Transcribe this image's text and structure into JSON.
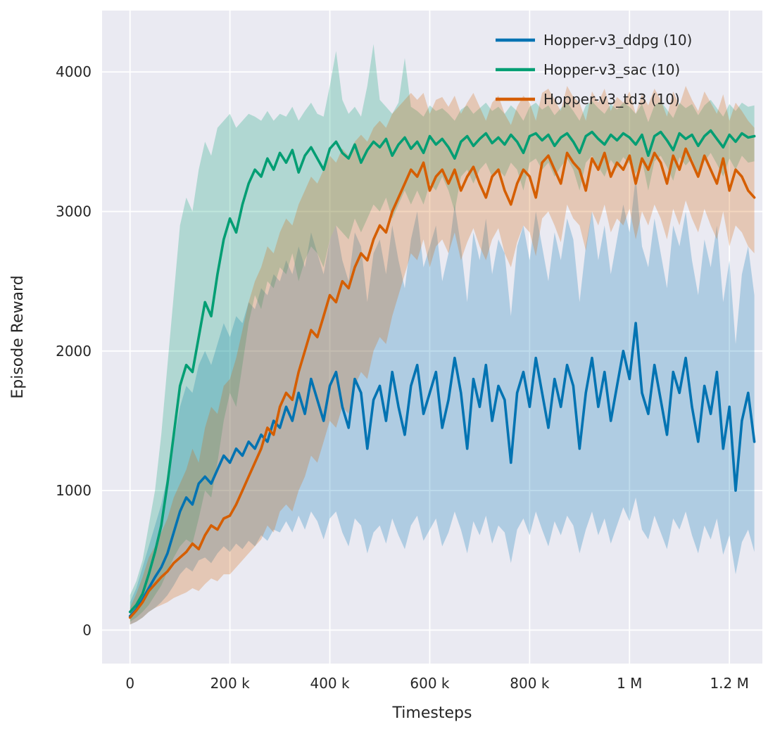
{
  "chart_data": {
    "type": "line",
    "title": "",
    "xlabel": "Timesteps",
    "ylabel": "Episode Reward",
    "axes": {
      "background": "#eaeaf2",
      "grid_color": "#ffffff",
      "text_color": "#262626",
      "grid": "on",
      "xlim": [
        -56000,
        1266000
      ],
      "ylim": [
        -240,
        4440
      ],
      "xticks": [
        {
          "value": 0,
          "label": "0"
        },
        {
          "value": 200000,
          "label": "200 k"
        },
        {
          "value": 400000,
          "label": "400 k"
        },
        {
          "value": 600000,
          "label": "600 k"
        },
        {
          "value": 800000,
          "label": "800 k"
        },
        {
          "value": 1000000,
          "label": "1 M"
        },
        {
          "value": 1200000,
          "label": "1.2 M"
        }
      ],
      "yticks": [
        {
          "value": 0,
          "label": "0"
        },
        {
          "value": 1000,
          "label": "1000"
        },
        {
          "value": 2000,
          "label": "2000"
        },
        {
          "value": 3000,
          "label": "3000"
        },
        {
          "value": 4000,
          "label": "4000"
        }
      ]
    },
    "legend": {
      "location": "upper right",
      "frame": false
    },
    "band_alpha": 0.25,
    "x": {
      "start": 0,
      "step": 12500,
      "count": 101,
      "unit": "timesteps"
    },
    "series": [
      {
        "id": "ddpg",
        "name": "Hopper-v3_ddpg (10)",
        "color": "#0173b2",
        "mean": [
          100,
          150,
          220,
          300,
          380,
          450,
          550,
          700,
          850,
          950,
          900,
          1050,
          1100,
          1050,
          1150,
          1250,
          1200,
          1300,
          1250,
          1350,
          1300,
          1400,
          1350,
          1500,
          1450,
          1600,
          1500,
          1700,
          1550,
          1800,
          1650,
          1500,
          1750,
          1850,
          1600,
          1450,
          1800,
          1700,
          1300,
          1650,
          1750,
          1500,
          1850,
          1600,
          1400,
          1750,
          1900,
          1550,
          1700,
          1850,
          1450,
          1650,
          1950,
          1700,
          1300,
          1800,
          1600,
          1900,
          1500,
          1750,
          1650,
          1200,
          1700,
          1850,
          1600,
          1950,
          1700,
          1450,
          1800,
          1600,
          1900,
          1750,
          1300,
          1700,
          1950,
          1600,
          1850,
          1500,
          1750,
          2000,
          1800,
          2200,
          1700,
          1550,
          1900,
          1650,
          1400,
          1850,
          1700,
          1950,
          1600,
          1350,
          1750,
          1550,
          1850,
          1300,
          1600,
          1000,
          1500,
          1700,
          1350
        ],
        "band_low": [
          40,
          60,
          90,
          130,
          160,
          200,
          250,
          320,
          400,
          450,
          420,
          500,
          520,
          480,
          550,
          600,
          560,
          620,
          580,
          640,
          600,
          680,
          640,
          720,
          700,
          780,
          700,
          820,
          720,
          850,
          780,
          650,
          800,
          850,
          700,
          600,
          800,
          750,
          550,
          700,
          750,
          620,
          800,
          680,
          580,
          750,
          820,
          640,
          720,
          800,
          600,
          700,
          850,
          720,
          550,
          780,
          680,
          820,
          620,
          750,
          700,
          480,
          720,
          800,
          680,
          850,
          720,
          600,
          780,
          680,
          820,
          750,
          550,
          720,
          850,
          680,
          800,
          620,
          750,
          880,
          780,
          950,
          720,
          650,
          820,
          700,
          580,
          800,
          720,
          850,
          680,
          550,
          750,
          650,
          800,
          540,
          680,
          400,
          630,
          720,
          560
        ],
        "band_high": [
          200,
          300,
          450,
          600,
          750,
          900,
          1100,
          1350,
          1600,
          1750,
          1700,
          1900,
          2000,
          1900,
          2050,
          2200,
          2100,
          2250,
          2200,
          2350,
          2300,
          2450,
          2400,
          2550,
          2500,
          2650,
          2550,
          2750,
          2600,
          2850,
          2700,
          2550,
          2800,
          2900,
          2650,
          2500,
          2850,
          2750,
          2350,
          2700,
          2800,
          2550,
          2900,
          2650,
          2450,
          2800,
          3000,
          2600,
          2750,
          2900,
          2500,
          2700,
          3050,
          2750,
          2350,
          2850,
          2650,
          2950,
          2550,
          2800,
          2700,
          2250,
          2750,
          2900,
          2650,
          3000,
          2750,
          2500,
          2850,
          2650,
          2950,
          2800,
          2350,
          2750,
          3000,
          2650,
          2900,
          2550,
          2800,
          3050,
          2850,
          3250,
          2750,
          2600,
          2950,
          2700,
          2450,
          2900,
          2750,
          3000,
          2650,
          2400,
          2800,
          2600,
          2900,
          2350,
          2650,
          2050,
          2550,
          2750,
          2400
        ]
      },
      {
        "id": "sac",
        "name": "Hopper-v3_sac (10)",
        "color": "#029e73",
        "mean": [
          130,
          180,
          260,
          400,
          560,
          750,
          1050,
          1400,
          1750,
          1900,
          1850,
          2100,
          2350,
          2250,
          2550,
          2800,
          2950,
          2850,
          3050,
          3200,
          3300,
          3250,
          3380,
          3300,
          3420,
          3350,
          3440,
          3280,
          3400,
          3460,
          3380,
          3300,
          3450,
          3500,
          3420,
          3380,
          3480,
          3350,
          3440,
          3500,
          3460,
          3520,
          3400,
          3480,
          3530,
          3450,
          3500,
          3420,
          3540,
          3480,
          3520,
          3460,
          3380,
          3500,
          3540,
          3470,
          3520,
          3560,
          3490,
          3530,
          3480,
          3550,
          3500,
          3420,
          3540,
          3560,
          3510,
          3550,
          3470,
          3530,
          3560,
          3500,
          3420,
          3540,
          3570,
          3520,
          3480,
          3550,
          3510,
          3560,
          3530,
          3480,
          3550,
          3400,
          3540,
          3570,
          3510,
          3440,
          3560,
          3520,
          3550,
          3470,
          3540,
          3580,
          3520,
          3460,
          3550,
          3500,
          3560,
          3530,
          3540
        ],
        "band_low": [
          60,
          90,
          130,
          180,
          250,
          320,
          420,
          520,
          600,
          650,
          620,
          800,
          1000,
          950,
          1200,
          1500,
          1700,
          1600,
          1900,
          2200,
          2400,
          2300,
          2500,
          2450,
          2600,
          2550,
          2700,
          2500,
          2650,
          2750,
          2700,
          2600,
          2800,
          2900,
          2850,
          2800,
          2950,
          2850,
          2950,
          3050,
          3000,
          3100,
          2950,
          3050,
          3150,
          3050,
          3150,
          3050,
          3200,
          3150,
          3250,
          3150,
          3000,
          3250,
          3300,
          3200,
          3300,
          3350,
          3250,
          3300,
          3250,
          3350,
          3300,
          3150,
          3350,
          3380,
          3300,
          3350,
          3250,
          3320,
          3380,
          3300,
          3150,
          3350,
          3400,
          3320,
          3250,
          3370,
          3310,
          3390,
          3340,
          3270,
          3370,
          3150,
          3360,
          3400,
          3320,
          3220,
          3390,
          3330,
          3380,
          3260,
          3360,
          3420,
          3340,
          3250,
          3380,
          3300,
          3400,
          3350,
          3360
        ],
        "band_high": [
          250,
          350,
          500,
          750,
          1000,
          1400,
          1900,
          2400,
          2900,
          3100,
          3000,
          3300,
          3500,
          3400,
          3600,
          3650,
          3700,
          3600,
          3650,
          3700,
          3680,
          3650,
          3720,
          3650,
          3700,
          3680,
          3750,
          3650,
          3720,
          3780,
          3700,
          3680,
          3900,
          4150,
          3800,
          3700,
          3750,
          3680,
          3900,
          4200,
          3800,
          3750,
          3700,
          3780,
          4100,
          3750,
          3720,
          3680,
          3760,
          3720,
          3740,
          3700,
          3650,
          3730,
          3760,
          3700,
          3740,
          3780,
          3720,
          3750,
          3700,
          3760,
          3720,
          3650,
          3750,
          3780,
          3730,
          3760,
          3690,
          3740,
          3780,
          3720,
          3650,
          3760,
          3790,
          3740,
          3700,
          3770,
          3730,
          3780,
          3750,
          3700,
          3770,
          3640,
          3760,
          3790,
          3730,
          3670,
          3780,
          3740,
          3770,
          3690,
          3760,
          3800,
          3740,
          3680,
          3770,
          3720,
          3780,
          3750,
          3760
        ]
      },
      {
        "id": "td3",
        "name": "Hopper-v3_td3 (10)",
        "color": "#d55e00",
        "mean": [
          90,
          140,
          200,
          280,
          330,
          380,
          420,
          480,
          520,
          560,
          620,
          580,
          680,
          750,
          720,
          800,
          820,
          900,
          1000,
          1100,
          1200,
          1300,
          1450,
          1400,
          1600,
          1700,
          1650,
          1850,
          2000,
          2150,
          2100,
          2250,
          2400,
          2350,
          2500,
          2450,
          2600,
          2700,
          2650,
          2800,
          2900,
          2850,
          3000,
          3100,
          3200,
          3300,
          3250,
          3350,
          3150,
          3250,
          3300,
          3200,
          3300,
          3150,
          3250,
          3320,
          3200,
          3100,
          3250,
          3300,
          3150,
          3050,
          3200,
          3300,
          3250,
          3100,
          3350,
          3400,
          3300,
          3200,
          3420,
          3350,
          3300,
          3150,
          3380,
          3300,
          3420,
          3250,
          3350,
          3300,
          3400,
          3200,
          3380,
          3300,
          3420,
          3350,
          3200,
          3400,
          3300,
          3450,
          3350,
          3250,
          3400,
          3300,
          3200,
          3380,
          3150,
          3300,
          3250,
          3150,
          3100
        ],
        "band_low": [
          40,
          60,
          90,
          130,
          160,
          180,
          200,
          230,
          250,
          270,
          300,
          280,
          330,
          370,
          350,
          400,
          400,
          450,
          500,
          550,
          600,
          650,
          750,
          700,
          850,
          900,
          850,
          1000,
          1100,
          1250,
          1200,
          1350,
          1500,
          1450,
          1600,
          1550,
          1750,
          1850,
          1800,
          2000,
          2100,
          2050,
          2250,
          2400,
          2550,
          2700,
          2650,
          2800,
          2600,
          2750,
          2800,
          2700,
          2850,
          2650,
          2780,
          2880,
          2750,
          2650,
          2800,
          2880,
          2700,
          2600,
          2780,
          2900,
          2850,
          2680,
          2950,
          3000,
          2900,
          2780,
          3050,
          2950,
          2900,
          2720,
          3000,
          2900,
          3050,
          2850,
          2950,
          2900,
          3020,
          2800,
          3000,
          2900,
          3050,
          2950,
          2800,
          3020,
          2900,
          3080,
          2950,
          2850,
          3020,
          2900,
          2800,
          3000,
          2750,
          2900,
          2850,
          2750,
          2700
        ],
        "band_high": [
          160,
          260,
          380,
          520,
          600,
          700,
          800,
          950,
          1050,
          1150,
          1300,
          1200,
          1450,
          1600,
          1550,
          1750,
          1800,
          1950,
          2150,
          2350,
          2500,
          2600,
          2750,
          2700,
          2850,
          2950,
          2900,
          3050,
          3150,
          3250,
          3200,
          3300,
          3400,
          3350,
          3450,
          3400,
          3500,
          3550,
          3500,
          3600,
          3650,
          3600,
          3700,
          3750,
          3800,
          3850,
          3800,
          3850,
          3700,
          3800,
          3820,
          3750,
          3830,
          3700,
          3780,
          3850,
          3750,
          3650,
          3780,
          3830,
          3700,
          3620,
          3750,
          3830,
          3780,
          3650,
          3850,
          3880,
          3800,
          3720,
          3900,
          3820,
          3780,
          3650,
          3860,
          3780,
          3880,
          3720,
          3820,
          3780,
          3860,
          3700,
          3840,
          3760,
          3880,
          3800,
          3680,
          3860,
          3760,
          3900,
          3800,
          3720,
          3860,
          3780,
          3700,
          3840,
          3650,
          3780,
          3720,
          3650,
          3600
        ]
      }
    ]
  }
}
